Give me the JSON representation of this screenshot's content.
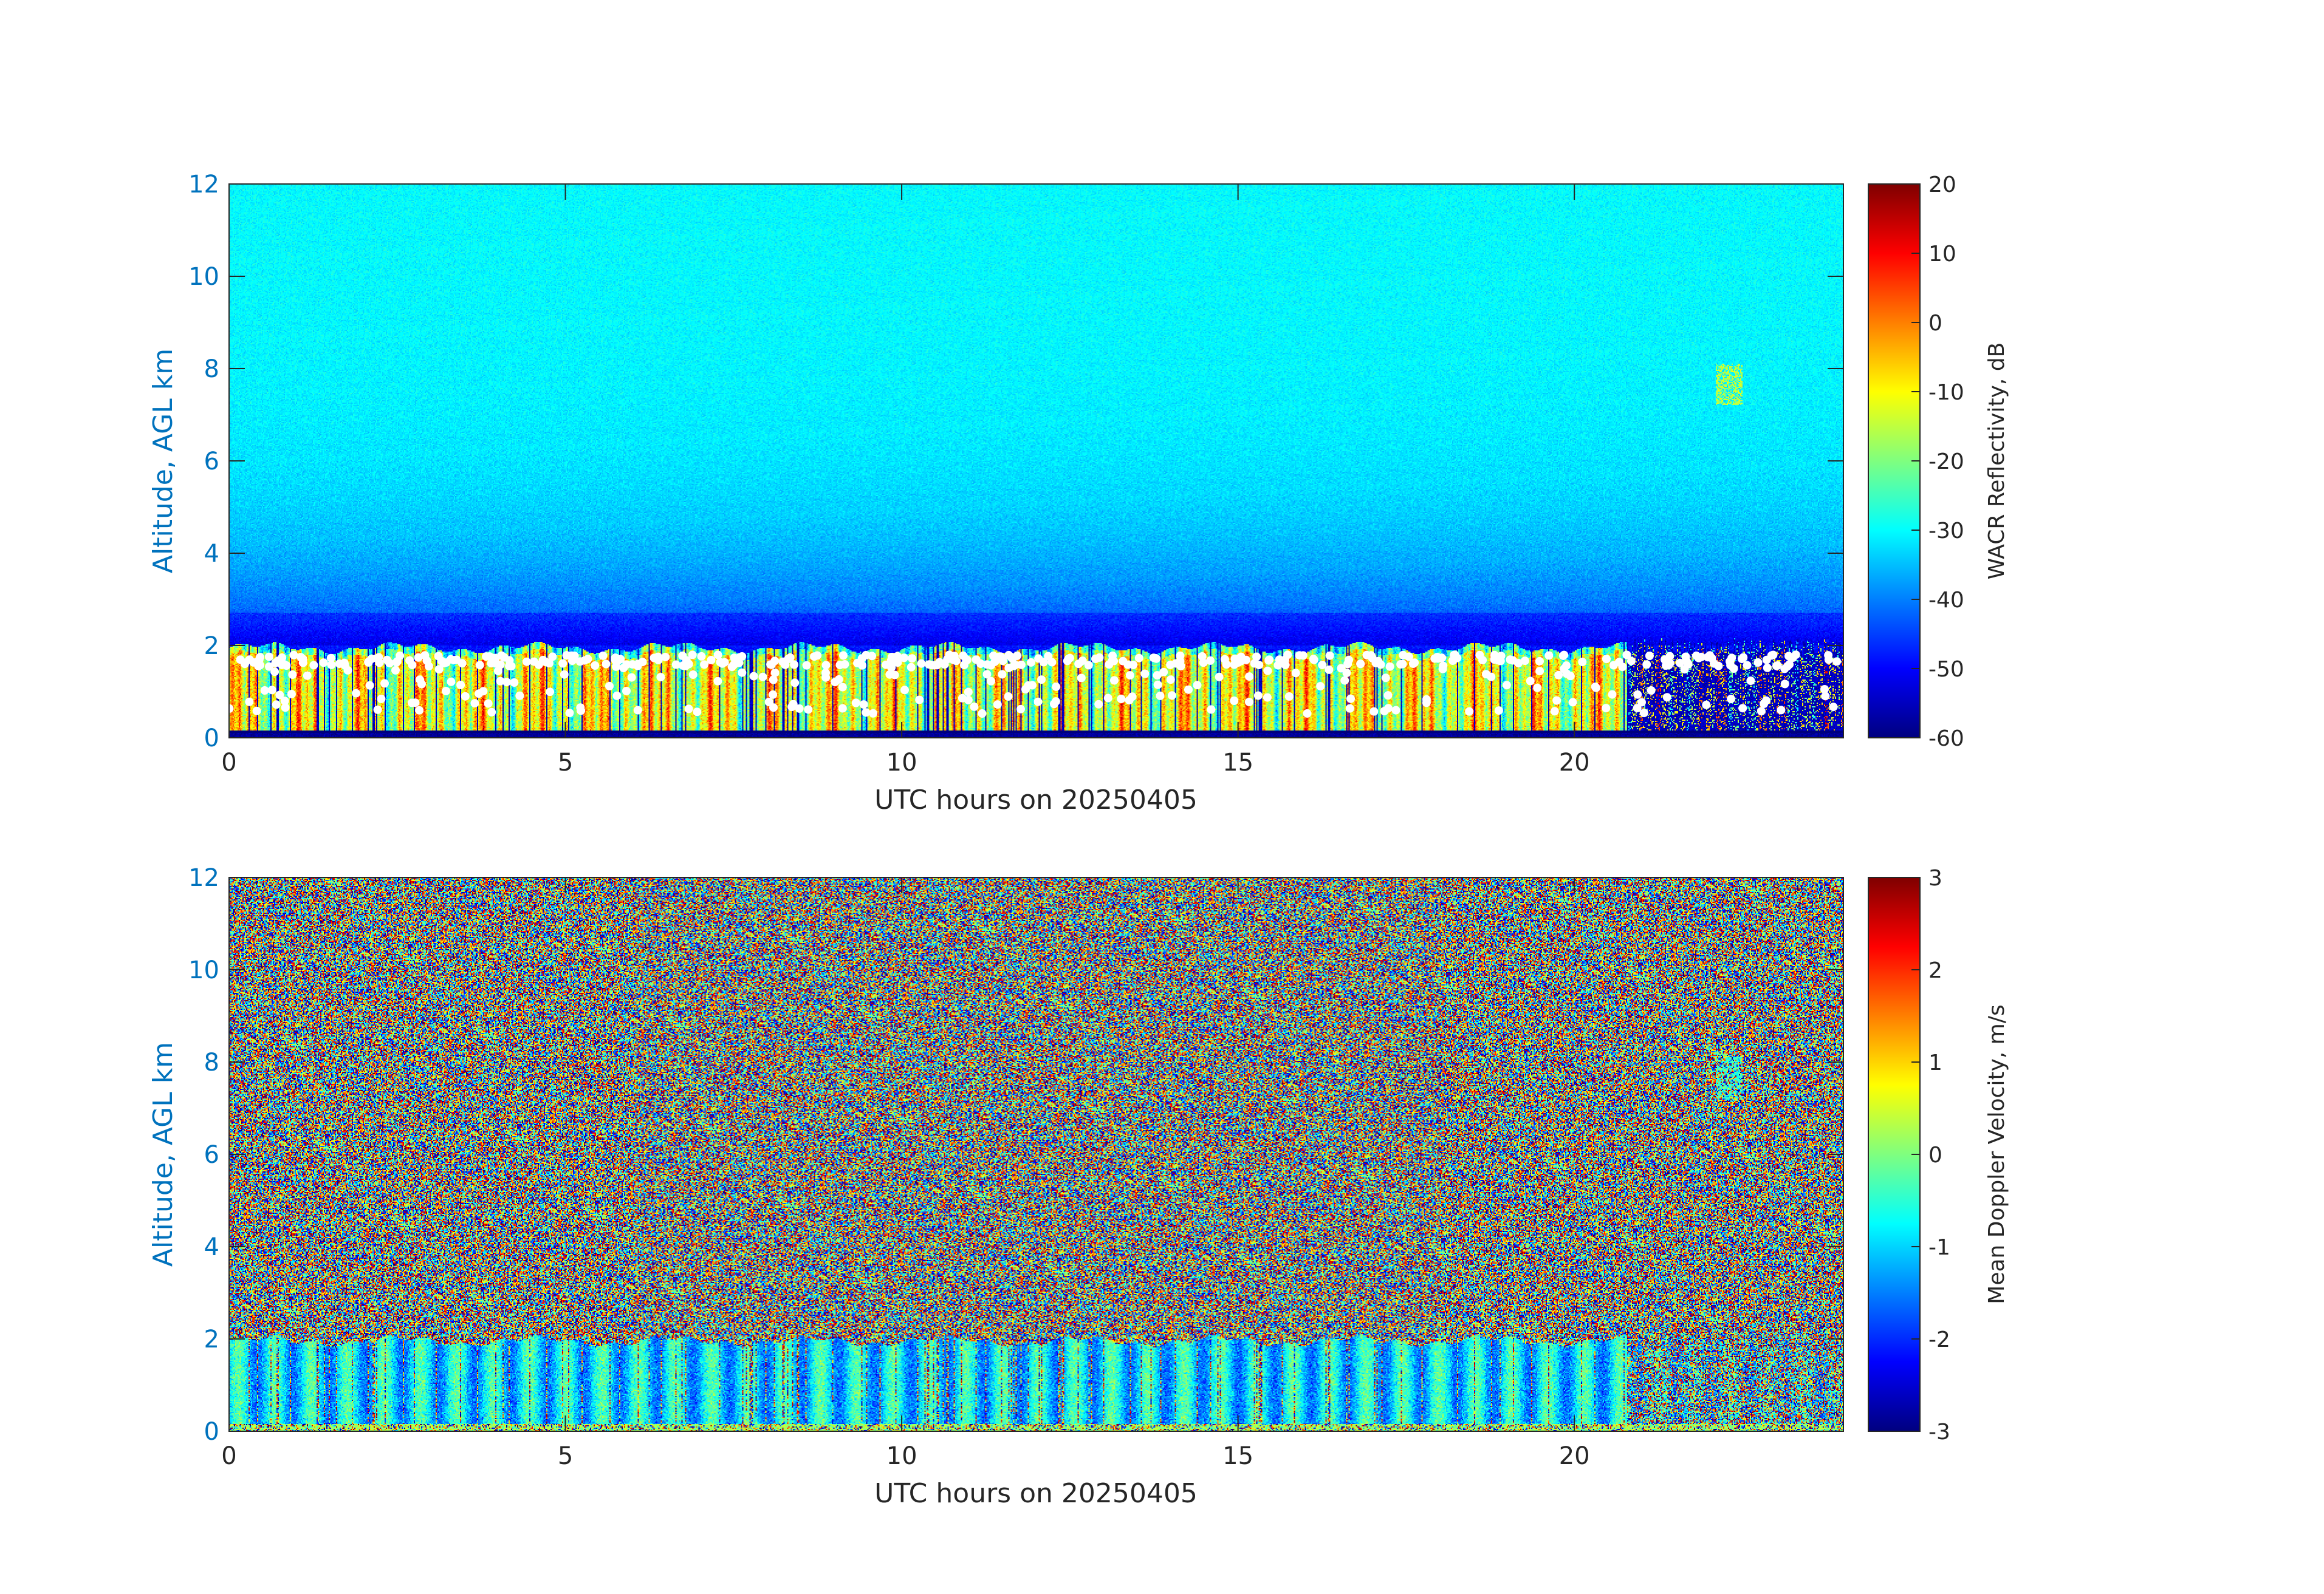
{
  "chart_data": [
    {
      "type": "heatmap",
      "title": "",
      "xlabel": "UTC hours on 20250405",
      "ylabel": "Altitude, AGL km",
      "xlim": [
        0,
        24
      ],
      "ylim": [
        0,
        12
      ],
      "x_ticks": [
        0,
        5,
        10,
        15,
        20
      ],
      "y_ticks": [
        0,
        2,
        4,
        6,
        8,
        10,
        12
      ],
      "grid": false,
      "colorbar": {
        "label": "WACR Reflectivity, dB",
        "limits": [
          -60,
          20
        ],
        "ticks": [
          20,
          10,
          0,
          -10,
          -20,
          -30,
          -40,
          -50,
          -60
        ],
        "colormap": "jet"
      },
      "features": {
        "noise_level_dB_at_2km": -48,
        "noise_level_dB_at_12km": -30,
        "cloud_layer_km": [
          0.1,
          2.0
        ],
        "cloud_reflectivity_dB": [
          -30,
          10
        ],
        "elevated_echo": {
          "hours": [
            22.1,
            22.5
          ],
          "altitude_km": [
            7.2,
            8.1
          ],
          "dB": -15
        },
        "ceilometer_cloud_base_points": "white dots, ~0.4-1.8 km",
        "ceilometer_base_color": "#ffffff"
      }
    },
    {
      "type": "heatmap",
      "title": "",
      "xlabel": "UTC hours on 20250405",
      "ylabel": "Altitude, AGL km",
      "xlim": [
        0,
        24
      ],
      "ylim": [
        0,
        12
      ],
      "x_ticks": [
        0,
        5,
        10,
        15,
        20
      ],
      "y_ticks": [
        0,
        2,
        4,
        6,
        8,
        10,
        12
      ],
      "grid": false,
      "colorbar": {
        "label": "Mean Doppler Velocity, m/s",
        "limits": [
          -3,
          3
        ],
        "ticks": [
          3,
          2,
          1,
          0,
          -1,
          -2,
          -3
        ],
        "colormap": "jet"
      },
      "features": {
        "noise": "random velocities above cloud layer",
        "cloud_layer_km": [
          0.1,
          2.0
        ],
        "cloud_velocity_ms": [
          -2,
          0
        ]
      }
    }
  ],
  "colors": {
    "axis_label": "#0072bd",
    "tick_text": "#262626",
    "white_dots": "#ffffff"
  }
}
